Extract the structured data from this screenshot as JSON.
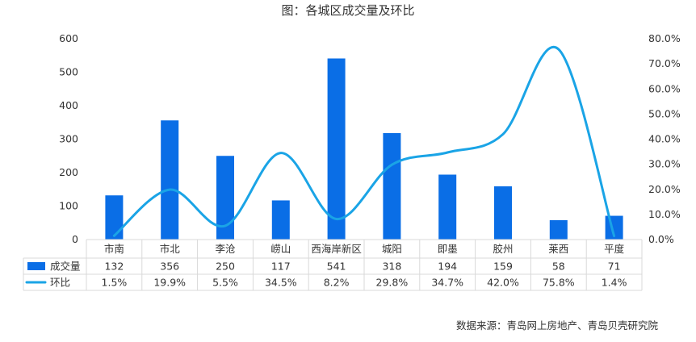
{
  "chart_data": {
    "type": "bar",
    "title": "图：各城区成交量及环比",
    "categories": [
      "市南",
      "市北",
      "李沧",
      "崂山",
      "西海岸新区",
      "城阳",
      "即墨",
      "胶州",
      "莱西",
      "平度"
    ],
    "series": [
      {
        "name": "成交量",
        "type": "bar",
        "axis": "left",
        "color": "#0a6ee6",
        "values": [
          132,
          356,
          250,
          117,
          541,
          318,
          194,
          159,
          58,
          71
        ],
        "labels": [
          "132",
          "356",
          "250",
          "117",
          "541",
          "318",
          "194",
          "159",
          "58",
          "71"
        ]
      },
      {
        "name": "环比",
        "type": "line",
        "axis": "right",
        "color": "#1aa4e6",
        "values": [
          1.5,
          19.9,
          5.5,
          34.5,
          8.2,
          29.8,
          34.7,
          42.0,
          75.8,
          1.4
        ],
        "labels": [
          "1.5%",
          "19.9%",
          "5.5%",
          "34.5%",
          "8.2%",
          "29.8%",
          "34.7%",
          "42.0%",
          "75.8%",
          "1.4%"
        ]
      }
    ],
    "y_left": {
      "min": 0,
      "max": 600,
      "ticks": [
        "0",
        "100",
        "200",
        "300",
        "400",
        "500",
        "600"
      ]
    },
    "y_right": {
      "min": 0,
      "max": 80,
      "ticks": [
        "0.0%",
        "10.0%",
        "20.0%",
        "30.0%",
        "40.0%",
        "50.0%",
        "60.0%",
        "70.0%",
        "80.0%"
      ]
    },
    "grid": false,
    "legend": "data-table",
    "source": "数据来源：青岛网上房地产、青岛贝壳研究院"
  }
}
